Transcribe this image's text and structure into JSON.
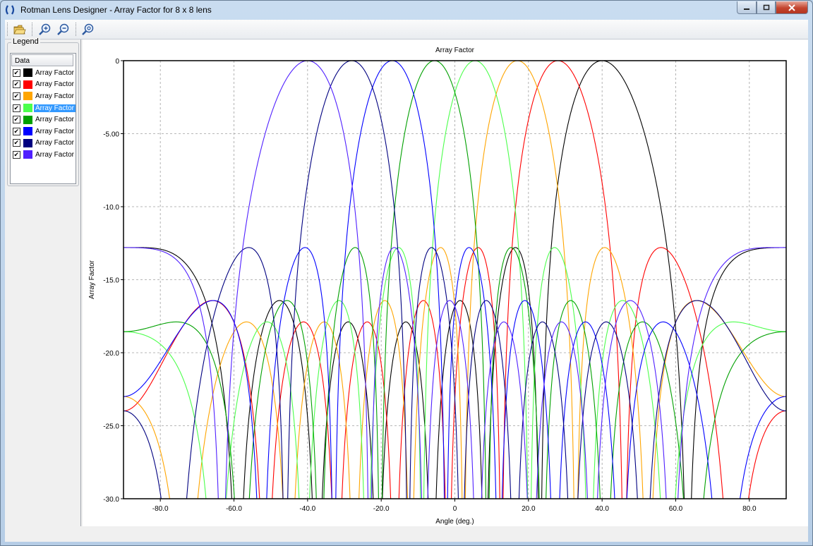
{
  "window": {
    "title": "Rotman Lens Designer - Array Factor for 8 x 8 lens"
  },
  "toolbar": [
    {
      "name": "open-folder-icon"
    },
    {
      "name": "zoom-in-icon"
    },
    {
      "name": "zoom-out-icon"
    },
    {
      "name": "zoom-reset-icon"
    }
  ],
  "legend": {
    "title": "Legend",
    "header": "Data",
    "items": [
      {
        "label": "Array Factor",
        "color": "#000000",
        "checked": true
      },
      {
        "label": "Array Factor",
        "color": "#ff0000",
        "checked": true
      },
      {
        "label": "Array Factor",
        "color": "#ffa500",
        "checked": true
      },
      {
        "label": "Array Factor",
        "color": "#4cff4c",
        "checked": true,
        "selected": true
      },
      {
        "label": "Array Factor",
        "color": "#00a000",
        "checked": true
      },
      {
        "label": "Array Factor",
        "color": "#0000ff",
        "checked": true
      },
      {
        "label": "Array Factor",
        "color": "#000080",
        "checked": true
      },
      {
        "label": "Array Factor",
        "color": "#5020ff",
        "checked": true
      }
    ]
  },
  "chart_data": {
    "type": "line",
    "title": "Array Factor",
    "xlabel": "Angle (deg.)",
    "ylabel": "Array Factor",
    "xlim": [
      -90,
      90
    ],
    "ylim": [
      -30,
      0
    ],
    "xticks": [
      -80,
      -60,
      -40,
      -20,
      0,
      20,
      40,
      60,
      80
    ],
    "xtick_labels": [
      "-80.0",
      "-60.0",
      "-40.0",
      "-20.0",
      "0",
      "20.0",
      "40.0",
      "60.0",
      "80.0"
    ],
    "yticks": [
      0,
      -5,
      -10,
      -15,
      -20,
      -25,
      -30
    ],
    "ytick_labels": [
      "0",
      "-5.00",
      "-10.0",
      "-15.0",
      "-20.0",
      "-25.0",
      "-30.0"
    ],
    "grid": true,
    "legend": "left-panel",
    "series": [
      {
        "color": "#000000",
        "peak_angle": 40.0
      },
      {
        "color": "#ff0000",
        "peak_angle": 28.0
      },
      {
        "color": "#ffa500",
        "peak_angle": 17.0
      },
      {
        "color": "#4cff4c",
        "peak_angle": 5.5
      },
      {
        "color": "#00a000",
        "peak_angle": -5.5
      },
      {
        "color": "#0000ff",
        "peak_angle": -17.0
      },
      {
        "color": "#000080",
        "peak_angle": -28.0
      },
      {
        "color": "#5020ff",
        "peak_angle": -40.0
      }
    ]
  }
}
